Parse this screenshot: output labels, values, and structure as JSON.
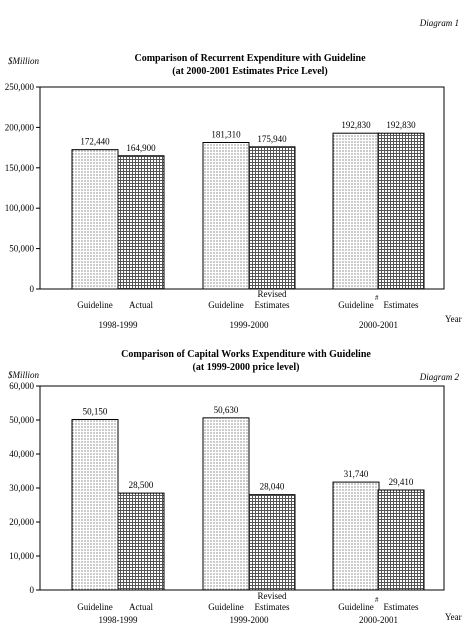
{
  "chart_data": [
    {
      "type": "bar",
      "diagram_label": "Diagram 1",
      "ylabel": "$Million",
      "title": "Comparison of Recurrent Expenditure with Guideline",
      "subtitle": "(at 2000-2001 Estimates Price Level)",
      "xlabel": "Year",
      "ylim": [
        0,
        250000
      ],
      "yticks": [
        "0",
        "50,000",
        "100,000",
        "150,000",
        "200,000",
        "250,000"
      ],
      "groups": [
        {
          "year": "1998-1999",
          "bars": [
            {
              "label": "Guideline",
              "value": 172440,
              "value_label": "172,440",
              "pattern": "dots"
            },
            {
              "label": "Actual",
              "value": 164900,
              "value_label": "164,900",
              "pattern": "grid"
            }
          ]
        },
        {
          "year": "1999-2000",
          "bars": [
            {
              "label": "Guideline",
              "value": 181310,
              "value_label": "181,310",
              "pattern": "dots"
            },
            {
              "label": "Revised Estimates",
              "label_lines": [
                "Revised",
                "Estimates"
              ],
              "value": 175940,
              "value_label": "175,940",
              "pattern": "grid"
            }
          ]
        },
        {
          "year": "2000-2001",
          "bars": [
            {
              "label": "Guideline",
              "footnote_mark": "#",
              "value": 192830,
              "value_label": "192,830",
              "pattern": "dots"
            },
            {
              "label": "Estimates",
              "value": 192830,
              "value_label": "192,830",
              "pattern": "grid"
            }
          ]
        }
      ]
    },
    {
      "type": "bar",
      "diagram_label": "Diagram 2",
      "ylabel": "$Million",
      "title": "Comparison of Capital Works Expenditure with Guideline",
      "subtitle": "(at 1999-2000 price level)",
      "xlabel": "Year",
      "ylim": [
        0,
        60000
      ],
      "yticks": [
        "0",
        "10,000",
        "20,000",
        "30,000",
        "40,000",
        "50,000",
        "60,000"
      ],
      "groups": [
        {
          "year": "1998-1999",
          "bars": [
            {
              "label": "Guideline",
              "value": 50150,
              "value_label": "50,150",
              "pattern": "dots"
            },
            {
              "label": "Actual",
              "value": 28500,
              "value_label": "28,500",
              "pattern": "grid"
            }
          ]
        },
        {
          "year": "1999-2000",
          "bars": [
            {
              "label": "Guideline",
              "value": 50630,
              "value_label": "50,630",
              "pattern": "dots"
            },
            {
              "label": "Revised Estimates",
              "label_lines": [
                "Revised",
                "Estimates"
              ],
              "value": 28040,
              "value_label": "28,040",
              "pattern": "grid"
            }
          ]
        },
        {
          "year": "2000-2001",
          "bars": [
            {
              "label": "Guideline",
              "footnote_mark": "#",
              "value": 31740,
              "value_label": "31,740",
              "pattern": "dots"
            },
            {
              "label": "Estimates",
              "value": 29410,
              "value_label": "29,410",
              "pattern": "grid"
            }
          ]
        }
      ]
    }
  ]
}
